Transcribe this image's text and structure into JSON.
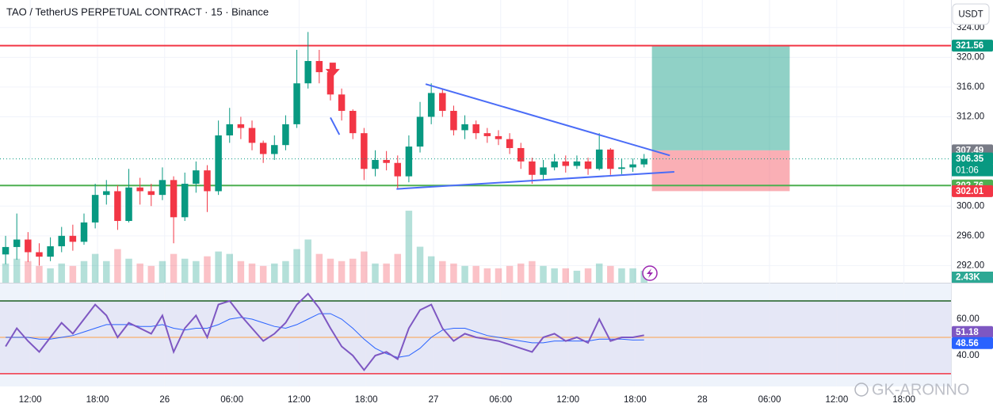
{
  "chart_data": {
    "type": "candlestick",
    "title": "TAO / TetherUS PERPETUAL CONTRACT · 15 · Binance",
    "currency_button": "USDT",
    "watermark": "GK-ARONNO",
    "up_color": "#089981",
    "down_color": "#f23645",
    "x": [
      0.5,
      1.5,
      2.5,
      3.5,
      4.5,
      5.5,
      6.5,
      7.5,
      8.5,
      9.5,
      10.5,
      11.5,
      12.5,
      13.5,
      14.5,
      15.5,
      16.5,
      17.5,
      18.5,
      19.5,
      20.5,
      21.5,
      22.5,
      23.5,
      24.5,
      25.5,
      26.5,
      27.5,
      28.5,
      29.5,
      30.5,
      31.5,
      32.5,
      33.5,
      34.5,
      35.5,
      36.5,
      37.5,
      38.5,
      39.5,
      40.5,
      41.5,
      42.5,
      43.5,
      44.5,
      45.5,
      46.5,
      47.5,
      48.5,
      49.5,
      50.5,
      51.5,
      52.5,
      53.5,
      54.5,
      55.5,
      56.5,
      57.5
    ],
    "open": [
      293.5,
      294.5,
      295.5,
      293.8,
      293.2,
      294.6,
      296.0,
      295.2,
      297.8,
      301.5,
      302.0,
      298.0,
      302.5,
      302.0,
      301.5,
      303.5,
      298.5,
      303.0,
      304.8,
      302.0,
      309.5,
      311.0,
      310.5,
      308.5,
      307.0,
      308.2,
      311.0,
      316.5,
      319.5,
      318.0,
      315.0,
      312.8,
      309.8,
      305.0,
      306.2,
      305.8,
      304.0,
      308.0,
      312.0,
      315.2,
      312.8,
      310.2,
      311.0,
      309.8,
      309.4,
      309.0,
      307.8,
      306.0,
      304.2,
      305.2,
      306.0,
      305.4,
      306.0,
      305.0,
      307.6,
      305.0,
      305.2,
      305.6
    ],
    "high": [
      296.0,
      299.0,
      296.5,
      295.0,
      295.8,
      297.2,
      297.5,
      299.0,
      303.0,
      303.5,
      302.8,
      305.0,
      303.8,
      303.0,
      305.2,
      304.0,
      304.5,
      306.0,
      305.5,
      311.5,
      313.2,
      312.0,
      311.5,
      308.8,
      309.5,
      312.2,
      321.0,
      323.4,
      321.0,
      319.0,
      315.8,
      313.0,
      310.5,
      307.5,
      307.4,
      306.8,
      309.5,
      314.0,
      316.5,
      315.8,
      313.5,
      312.2,
      311.5,
      310.5,
      310.2,
      309.8,
      308.5,
      306.5,
      306.2,
      307.0,
      306.8,
      306.8,
      306.5,
      309.8,
      307.8,
      306.4,
      306.4,
      307.0
    ],
    "low": [
      292.2,
      292.8,
      292.5,
      292.0,
      292.6,
      293.8,
      294.0,
      294.8,
      297.0,
      300.2,
      296.8,
      297.8,
      300.2,
      300.0,
      300.8,
      295.0,
      298.0,
      301.8,
      299.2,
      301.5,
      308.5,
      309.0,
      307.5,
      305.8,
      306.2,
      307.5,
      310.5,
      315.8,
      316.5,
      314.2,
      311.5,
      309.0,
      303.5,
      304.0,
      304.8,
      302.3,
      303.2,
      307.2,
      311.0,
      312.0,
      309.5,
      309.0,
      309.0,
      308.5,
      308.2,
      307.0,
      305.0,
      303.0,
      303.5,
      304.8,
      304.5,
      305.0,
      304.2,
      304.8,
      304.2,
      304.3,
      304.6,
      305.2
    ],
    "close": [
      294.5,
      295.5,
      293.8,
      293.2,
      294.6,
      296.0,
      295.2,
      297.8,
      301.5,
      302.0,
      298.0,
      302.5,
      302.0,
      301.5,
      303.5,
      298.5,
      303.0,
      304.8,
      302.0,
      309.5,
      311.0,
      310.5,
      308.5,
      307.0,
      308.2,
      311.0,
      316.5,
      319.5,
      318.0,
      315.0,
      312.8,
      309.8,
      305.0,
      306.2,
      305.8,
      304.0,
      308.0,
      312.0,
      315.2,
      312.8,
      310.2,
      311.0,
      309.8,
      309.4,
      309.0,
      307.8,
      306.0,
      304.2,
      305.2,
      306.0,
      305.4,
      306.0,
      305.0,
      307.6,
      305.0,
      305.2,
      305.6,
      306.35
    ],
    "xlim": [
      0,
      84.9
    ],
    "xticks": [
      {
        "value": 2.7,
        "label": "12:00"
      },
      {
        "value": 8.7,
        "label": "18:00"
      },
      {
        "value": 14.7,
        "label": "26"
      },
      {
        "value": 20.7,
        "label": "06:00"
      },
      {
        "value": 26.7,
        "label": "12:00"
      },
      {
        "value": 32.7,
        "label": "18:00"
      },
      {
        "value": 38.7,
        "label": "27"
      },
      {
        "value": 44.7,
        "label": "06:00"
      },
      {
        "value": 50.7,
        "label": "12:00"
      },
      {
        "value": 56.7,
        "label": "18:00"
      },
      {
        "value": 62.7,
        "label": "28"
      },
      {
        "value": 68.7,
        "label": "06:00"
      },
      {
        "value": 74.7,
        "label": "12:00"
      },
      {
        "value": 80.7,
        "label": "18:00"
      }
    ],
    "ylim": [
      289.7,
      327.7
    ],
    "yticks": [
      {
        "value": 324,
        "label": "324.00"
      },
      {
        "value": 320,
        "label": "320.00"
      },
      {
        "value": 316,
        "label": "316.00"
      },
      {
        "value": 312,
        "label": "312.00"
      },
      {
        "value": 300,
        "label": "300.00"
      },
      {
        "value": 296,
        "label": "296.00"
      },
      {
        "value": 292,
        "label": "292.00"
      }
    ],
    "volume": {
      "values": [
        8,
        10,
        9,
        7,
        6,
        8,
        7,
        9,
        12,
        9,
        14,
        10,
        8,
        7,
        9,
        12,
        10,
        9,
        11,
        13,
        12,
        9,
        8,
        7,
        8,
        9,
        14,
        18,
        12,
        10,
        9,
        10,
        13,
        8,
        8,
        12,
        30,
        15,
        11,
        9,
        8,
        7,
        7,
        6,
        6,
        7,
        8,
        9,
        7,
        6,
        6,
        5,
        6,
        8,
        7,
        6,
        6,
        5
      ],
      "ylim": [
        0,
        33
      ],
      "badge": {
        "value": 2.43,
        "label": "2.43K"
      }
    },
    "levels": [
      {
        "value": 321.56,
        "color": "#f23645"
      },
      {
        "value": 302.76,
        "color": "#4caf50"
      }
    ],
    "trendlines": [
      {
        "from": [
          38.0,
          316.4
        ],
        "to": [
          59.8,
          306.8
        ],
        "color": "#4a6cf7"
      },
      {
        "from": [
          35.4,
          302.3
        ],
        "to": [
          60.2,
          304.6
        ],
        "color": "#4a6cf7"
      },
      {
        "from": [
          29.5,
          311.9
        ],
        "to": [
          30.3,
          309.6
        ],
        "color": "#4a6cf7"
      }
    ],
    "arrow": {
      "x": 29.7,
      "y": 318.0,
      "color": "#f23645"
    },
    "position": {
      "x_start": 58.2,
      "x_end": 70.5,
      "target": 321.56,
      "entry": 307.49,
      "stop": 302.01
    },
    "badges": [
      {
        "value": 321.56,
        "label": "321.56",
        "color": "#089981"
      },
      {
        "value": 307.49,
        "label": "307.49",
        "color": "#787b86"
      },
      {
        "value": 306.35,
        "label": "306.35",
        "color": "#089981"
      },
      {
        "value": 302.76,
        "label": "302.76",
        "color": "#4caf50"
      },
      {
        "value": 302.01,
        "label": "302.01",
        "color": "#f23645"
      }
    ],
    "countdown": "01:06",
    "rsi": {
      "values": [
        45,
        55,
        48,
        42,
        50,
        58,
        52,
        60,
        68,
        62,
        50,
        58,
        55,
        52,
        62,
        42,
        55,
        62,
        50,
        68,
        70,
        62,
        55,
        48,
        52,
        58,
        68,
        74,
        66,
        55,
        45,
        40,
        32,
        40,
        42,
        38,
        55,
        65,
        68,
        55,
        48,
        52,
        50,
        49,
        48,
        46,
        44,
        42,
        50,
        52,
        48,
        50,
        47,
        60,
        48,
        50,
        50,
        51.18
      ],
      "ma": [
        50,
        50,
        50,
        49,
        49,
        50,
        51,
        53,
        55,
        57,
        57,
        57,
        56,
        56,
        57,
        55,
        54,
        55,
        55,
        57,
        60,
        61,
        60,
        58,
        56,
        55,
        57,
        60,
        63,
        63,
        60,
        55,
        49,
        44,
        41,
        39,
        40,
        44,
        50,
        54,
        55,
        55,
        53,
        51,
        50,
        49,
        48,
        47,
        47,
        48,
        48,
        48,
        48,
        49,
        49,
        49,
        48.5,
        48.56
      ],
      "color": "#7e57c2",
      "ma_color": "#2962ff",
      "ylim": [
        23,
        79.6
      ],
      "yticks": [
        {
          "value": 60,
          "label": "60.00"
        },
        {
          "value": 40,
          "label": "40.00"
        }
      ],
      "upper": 70,
      "middle": 50,
      "lower": 30,
      "badges": [
        {
          "value": 51.18,
          "label": "51.18",
          "color": "#7e57c2"
        },
        {
          "value": 48.56,
          "label": "48.56",
          "color": "#2962ff"
        }
      ]
    }
  }
}
